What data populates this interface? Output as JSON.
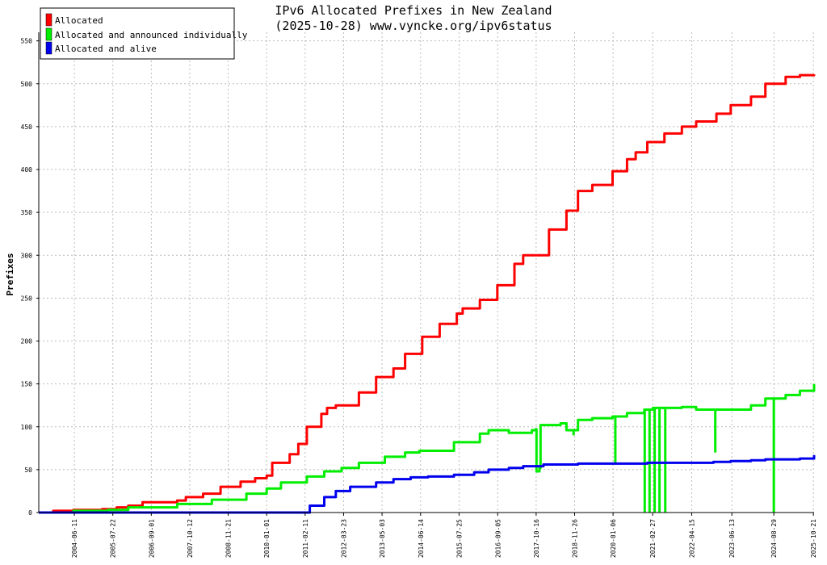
{
  "chart_data": {
    "type": "line",
    "title": "IPv6 Allocated Prefixes in New Zealand",
    "subtitle": "(2025-10-28) www.vyncke.org/ipv6status",
    "ylabel": "Prefixes",
    "xlabel": "",
    "ylim": [
      0,
      560
    ],
    "xlim": [
      "2003-06-01",
      "2025-10-28"
    ],
    "yticks": [
      0,
      50,
      100,
      150,
      200,
      250,
      300,
      350,
      400,
      450,
      500,
      550
    ],
    "xticks": [
      "2004-06-11",
      "2005-07-22",
      "2006-09-01",
      "2007-10-12",
      "2008-11-21",
      "2010-01-01",
      "2011-02-11",
      "2012-03-23",
      "2013-05-03",
      "2014-06-14",
      "2015-07-25",
      "2016-09-05",
      "2017-10-16",
      "2018-11-26",
      "2020-01-06",
      "2021-02-27",
      "2022-04-15",
      "2023-06-13",
      "2024-08-29",
      "2025-10-21"
    ],
    "grid": true,
    "legend_position": "top-left",
    "series": [
      {
        "name": "Allocated",
        "color": "#ff0000",
        "x": [
          "2003-06-01",
          "2003-11-01",
          "2004-06-01",
          "2005-04-01",
          "2005-09-01",
          "2006-01-01",
          "2006-06-01",
          "2007-06-01",
          "2007-09-01",
          "2008-03-01",
          "2008-09-01",
          "2009-04-01",
          "2009-09-01",
          "2010-01-01",
          "2010-03-01",
          "2010-09-01",
          "2010-12-01",
          "2011-03-01",
          "2011-08-01",
          "2011-10-01",
          "2012-01-01",
          "2012-09-01",
          "2013-03-01",
          "2013-09-01",
          "2014-01-01",
          "2014-07-01",
          "2015-01-01",
          "2015-07-01",
          "2015-09-01",
          "2016-03-01",
          "2016-09-01",
          "2017-03-01",
          "2017-06-01",
          "2018-03-01",
          "2018-09-01",
          "2019-01-01",
          "2019-06-01",
          "2020-01-01",
          "2020-06-01",
          "2020-09-01",
          "2021-01-01",
          "2021-07-01",
          "2022-01-01",
          "2022-06-01",
          "2023-01-01",
          "2023-06-01",
          "2024-01-01",
          "2024-06-01",
          "2025-01-01",
          "2025-06-01",
          "2025-10-28"
        ],
        "values": [
          0,
          2,
          3,
          4,
          6,
          8,
          12,
          14,
          18,
          22,
          30,
          36,
          40,
          43,
          58,
          68,
          80,
          100,
          115,
          122,
          125,
          140,
          158,
          168,
          185,
          205,
          220,
          232,
          238,
          248,
          265,
          290,
          300,
          330,
          352,
          375,
          382,
          398,
          412,
          420,
          432,
          442,
          450,
          456,
          465,
          475,
          485,
          500,
          508,
          510,
          511
        ]
      },
      {
        "name": "Allocated and announced individually",
        "color": "#00ee00",
        "x": [
          "2003-06-01",
          "2004-06-01",
          "2005-06-01",
          "2006-01-01",
          "2007-06-01",
          "2008-06-01",
          "2009-06-01",
          "2010-01-01",
          "2010-06-01",
          "2011-03-01",
          "2011-09-01",
          "2012-03-01",
          "2012-09-01",
          "2013-06-01",
          "2014-01-01",
          "2014-06-01",
          "2015-06-01",
          "2016-03-01",
          "2016-06-01",
          "2017-01-01",
          "2017-09-01",
          "2017-10-10",
          "2017-10-20",
          "2017-11-20",
          "2017-12-01",
          "2018-07-01",
          "2018-09-01",
          "2019-01-01",
          "2019-06-01",
          "2020-01-01",
          "2020-06-01",
          "2020-12-01",
          "2021-03-01",
          "2022-01-01",
          "2022-06-01",
          "2023-01-01",
          "2023-06-01",
          "2024-01-01",
          "2024-06-01",
          "2025-01-01",
          "2025-06-01",
          "2025-10-28"
        ],
        "values": [
          0,
          2,
          3,
          6,
          10,
          15,
          22,
          28,
          35,
          42,
          48,
          52,
          58,
          65,
          70,
          72,
          82,
          92,
          96,
          93,
          96,
          97,
          48,
          52,
          102,
          104,
          96,
          108,
          110,
          112,
          116,
          120,
          122,
          123,
          120,
          120,
          120,
          125,
          133,
          137,
          142,
          150
        ],
        "dropouts": [
          {
            "x": "2020-12-05",
            "value": 0
          },
          {
            "x": "2021-01-25",
            "value": 0
          },
          {
            "x": "2021-03-20",
            "value": 0
          },
          {
            "x": "2021-05-10",
            "value": 0
          },
          {
            "x": "2021-07-10",
            "value": 0
          },
          {
            "x": "2020-01-30",
            "value": 58
          },
          {
            "x": "2018-11-15",
            "value": 90
          },
          {
            "x": "2022-12-20",
            "value": 70
          },
          {
            "x": "2024-08-29",
            "value": 0
          }
        ]
      },
      {
        "name": "Allocated and alive",
        "color": "#0000ee",
        "x": [
          "2003-06-01",
          "2011-02-01",
          "2011-04-01",
          "2011-09-01",
          "2012-01-01",
          "2012-06-01",
          "2013-03-01",
          "2013-09-01",
          "2014-03-01",
          "2014-09-01",
          "2015-06-01",
          "2016-01-01",
          "2016-06-01",
          "2017-01-01",
          "2017-06-01",
          "2018-01-01",
          "2019-01-01",
          "2020-01-01",
          "2021-01-01",
          "2022-01-01",
          "2022-12-01",
          "2023-06-01",
          "2024-01-01",
          "2024-06-01",
          "2025-06-01",
          "2025-10-28"
        ],
        "values": [
          0,
          0,
          8,
          18,
          25,
          30,
          35,
          39,
          41,
          42,
          44,
          47,
          50,
          52,
          54,
          56,
          57,
          57,
          58,
          58,
          59,
          60,
          61,
          62,
          63,
          67
        ]
      }
    ]
  }
}
